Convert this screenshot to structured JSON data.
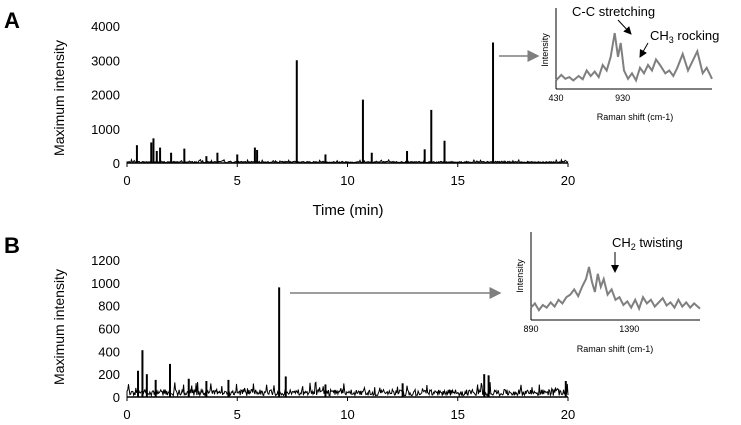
{
  "figure": {
    "panel_a_letter": "A",
    "panel_b_letter": "B"
  },
  "chart_data": [
    {
      "panel": "A",
      "type": "line",
      "xlabel": "Time (min)",
      "ylabel": "Maximum intensity",
      "xlim": [
        0,
        20
      ],
      "ylim": [
        0,
        4000
      ],
      "xticks": [
        0,
        5,
        10,
        15,
        20
      ],
      "yticks": [
        0,
        1000,
        2000,
        3000,
        4000
      ],
      "baseline_level": 40,
      "peaks": [
        {
          "x": 0.45,
          "y": 520
        },
        {
          "x": 1.1,
          "y": 600
        },
        {
          "x": 1.2,
          "y": 720
        },
        {
          "x": 1.35,
          "y": 350
        },
        {
          "x": 1.5,
          "y": 450
        },
        {
          "x": 2.0,
          "y": 300
        },
        {
          "x": 2.6,
          "y": 420
        },
        {
          "x": 3.6,
          "y": 200
        },
        {
          "x": 4.1,
          "y": 300
        },
        {
          "x": 5.0,
          "y": 250
        },
        {
          "x": 5.8,
          "y": 450
        },
        {
          "x": 5.9,
          "y": 380
        },
        {
          "x": 7.7,
          "y": 3000
        },
        {
          "x": 9.0,
          "y": 250
        },
        {
          "x": 10.7,
          "y": 1850
        },
        {
          "x": 11.1,
          "y": 300
        },
        {
          "x": 12.7,
          "y": 350
        },
        {
          "x": 13.5,
          "y": 400
        },
        {
          "x": 13.8,
          "y": 1550
        },
        {
          "x": 14.4,
          "y": 650
        },
        {
          "x": 16.6,
          "y": 3520
        }
      ],
      "inset": {
        "ylabel": "Intensity",
        "xlabel": "Raman shift (cm-1)",
        "xticks": [
          430,
          930
        ],
        "xlim": [
          430,
          1600
        ],
        "annotation_1": "C-C stretching",
        "annotation_2_prefix": "CH",
        "annotation_2_sub": "3",
        "annotation_2_suffix": " rocking",
        "spectrum": [
          [
            430,
            0.12
          ],
          [
            470,
            0.22
          ],
          [
            500,
            0.15
          ],
          [
            530,
            0.18
          ],
          [
            560,
            0.12
          ],
          [
            600,
            0.2
          ],
          [
            630,
            0.14
          ],
          [
            660,
            0.3
          ],
          [
            690,
            0.2
          ],
          [
            720,
            0.28
          ],
          [
            750,
            0.18
          ],
          [
            780,
            0.4
          ],
          [
            810,
            0.3
          ],
          [
            840,
            0.55
          ],
          [
            870,
            0.98
          ],
          [
            895,
            0.55
          ],
          [
            915,
            0.8
          ],
          [
            940,
            0.3
          ],
          [
            970,
            0.15
          ],
          [
            1000,
            0.25
          ],
          [
            1030,
            0.12
          ],
          [
            1060,
            0.35
          ],
          [
            1090,
            0.25
          ],
          [
            1120,
            0.4
          ],
          [
            1150,
            0.3
          ],
          [
            1180,
            0.5
          ],
          [
            1210,
            0.4
          ],
          [
            1250,
            0.25
          ],
          [
            1280,
            0.3
          ],
          [
            1310,
            0.2
          ],
          [
            1340,
            0.35
          ],
          [
            1380,
            0.6
          ],
          [
            1420,
            0.3
          ],
          [
            1450,
            0.45
          ],
          [
            1490,
            0.65
          ],
          [
            1530,
            0.25
          ],
          [
            1560,
            0.35
          ],
          [
            1600,
            0.15
          ]
        ]
      }
    },
    {
      "panel": "B",
      "type": "line",
      "xlabel": "",
      "ylabel": "Maximum intensity",
      "xlim": [
        0,
        20
      ],
      "ylim": [
        0,
        1200
      ],
      "xticks": [
        0,
        5,
        10,
        15,
        20
      ],
      "yticks": [
        0,
        200,
        400,
        600,
        800,
        1000,
        1200
      ],
      "baseline_level": 55,
      "peaks": [
        {
          "x": 0.5,
          "y": 230
        },
        {
          "x": 0.7,
          "y": 410
        },
        {
          "x": 0.9,
          "y": 200
        },
        {
          "x": 1.3,
          "y": 150
        },
        {
          "x": 1.95,
          "y": 290
        },
        {
          "x": 2.8,
          "y": 160
        },
        {
          "x": 3.6,
          "y": 140
        },
        {
          "x": 4.6,
          "y": 150
        },
        {
          "x": 6.9,
          "y": 960
        },
        {
          "x": 7.2,
          "y": 180
        },
        {
          "x": 9.0,
          "y": 110
        },
        {
          "x": 12.5,
          "y": 120
        },
        {
          "x": 16.2,
          "y": 200
        },
        {
          "x": 16.4,
          "y": 190
        },
        {
          "x": 19.9,
          "y": 140
        }
      ],
      "inset": {
        "ylabel": "Intensity",
        "xlabel": "Raman shift (cm-1)",
        "xticks": [
          890,
          1390
        ],
        "xlim": [
          890,
          1750
        ],
        "annotation_1_prefix": "CH",
        "annotation_1_sub": "2",
        "annotation_1_suffix": " twisting",
        "spectrum": [
          [
            890,
            0.2
          ],
          [
            910,
            0.28
          ],
          [
            930,
            0.15
          ],
          [
            950,
            0.25
          ],
          [
            970,
            0.2
          ],
          [
            990,
            0.3
          ],
          [
            1010,
            0.22
          ],
          [
            1030,
            0.35
          ],
          [
            1050,
            0.28
          ],
          [
            1070,
            0.4
          ],
          [
            1090,
            0.45
          ],
          [
            1110,
            0.55
          ],
          [
            1130,
            0.42
          ],
          [
            1150,
            0.6
          ],
          [
            1170,
            0.75
          ],
          [
            1185,
            0.98
          ],
          [
            1200,
            0.7
          ],
          [
            1215,
            0.5
          ],
          [
            1230,
            0.85
          ],
          [
            1245,
            0.6
          ],
          [
            1260,
            0.75
          ],
          [
            1280,
            0.45
          ],
          [
            1300,
            0.55
          ],
          [
            1320,
            0.35
          ],
          [
            1340,
            0.4
          ],
          [
            1360,
            0.25
          ],
          [
            1380,
            0.32
          ],
          [
            1400,
            0.2
          ],
          [
            1420,
            0.35
          ],
          [
            1440,
            0.18
          ],
          [
            1460,
            0.4
          ],
          [
            1480,
            0.28
          ],
          [
            1500,
            0.35
          ],
          [
            1520,
            0.22
          ],
          [
            1540,
            0.3
          ],
          [
            1560,
            0.38
          ],
          [
            1580,
            0.24
          ],
          [
            1600,
            0.3
          ],
          [
            1620,
            0.2
          ],
          [
            1640,
            0.35
          ],
          [
            1660,
            0.22
          ],
          [
            1680,
            0.3
          ],
          [
            1700,
            0.2
          ],
          [
            1720,
            0.28
          ],
          [
            1750,
            0.18
          ]
        ]
      }
    }
  ]
}
